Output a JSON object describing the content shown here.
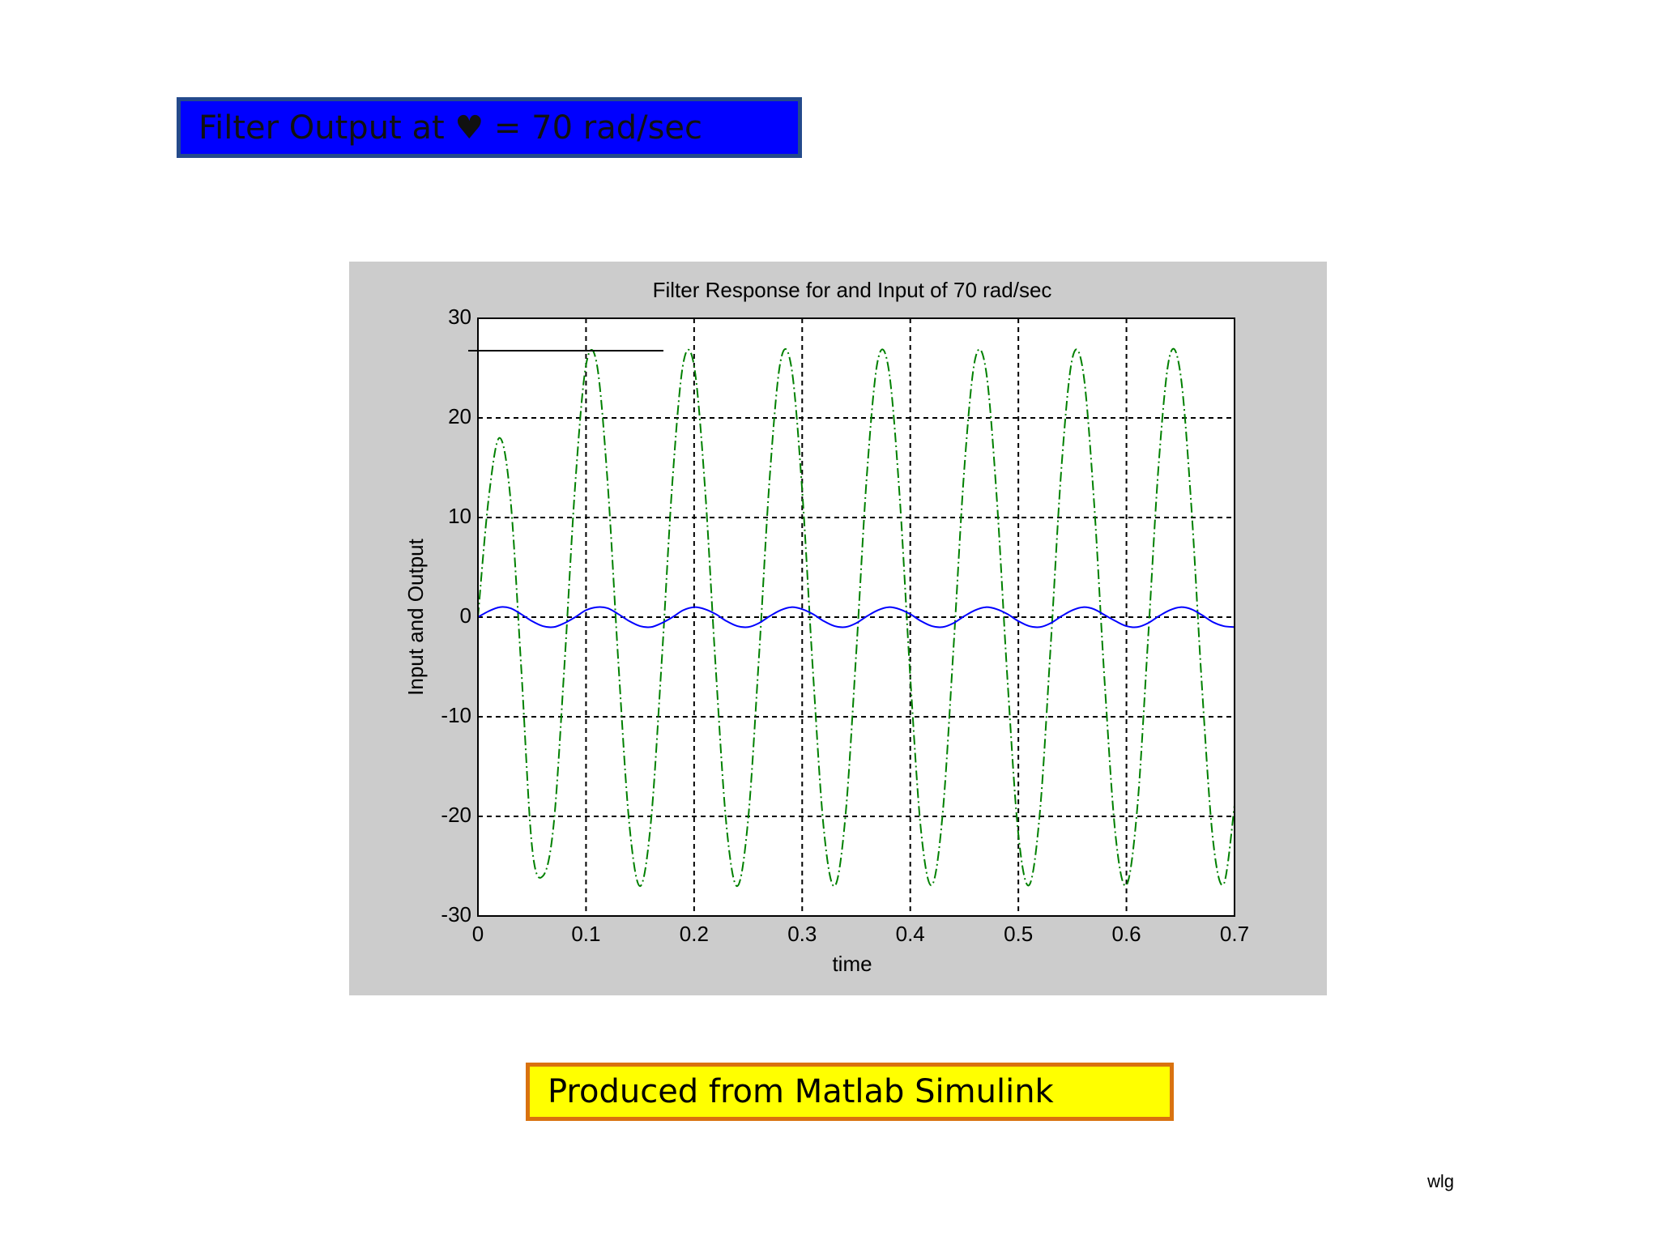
{
  "header_box": {
    "text": "Filter Output at ♥ =  70 rad/sec"
  },
  "footer_box": {
    "text": "Produced from Matlab Simulink"
  },
  "footer_note": "wlg",
  "chart_data": {
    "type": "line",
    "title": "Filter Response for and Input of 70 rad/sec",
    "x_label": "time",
    "y_label": "Input and Output",
    "x": [
      0,
      0.01,
      0.02,
      0.03,
      0.04,
      0.05,
      0.06,
      0.07,
      0.08,
      0.09,
      0.1,
      0.11,
      0.12,
      0.13,
      0.14,
      0.15,
      0.16,
      0.17,
      0.18,
      0.19,
      0.2,
      0.21,
      0.22,
      0.23,
      0.24,
      0.25,
      0.26,
      0.27,
      0.28,
      0.29,
      0.3,
      0.31,
      0.32,
      0.33,
      0.34,
      0.35,
      0.36,
      0.37,
      0.38,
      0.39,
      0.4,
      0.41,
      0.42,
      0.43,
      0.44,
      0.45,
      0.46,
      0.47,
      0.48,
      0.49,
      0.5,
      0.51,
      0.52,
      0.53,
      0.54,
      0.55,
      0.56,
      0.57,
      0.58,
      0.59,
      0.6,
      0.61,
      0.62,
      0.63,
      0.64,
      0.65,
      0.66,
      0.67,
      0.68,
      0.69,
      0.7
    ],
    "series": [
      {
        "color": "#008000",
        "dash": "12 4 2 4",
        "values": [
          0,
          12,
          18,
          12,
          -5,
          -23,
          -26,
          -20.9,
          -4.9,
          13.3,
          25.3,
          25.4,
          13.5,
          -4.7,
          -20.7,
          -27,
          -20.6,
          -4.5,
          13.7,
          25.5,
          25.2,
          13.1,
          -5.1,
          -21,
          -27,
          -20.3,
          -4,
          14.1,
          25.7,
          25.1,
          12.7,
          -5.5,
          -21.3,
          -27,
          -20,
          -3.6,
          14.5,
          25.8,
          24.9,
          12.4,
          -6,
          -21.5,
          -26.9,
          -19.7,
          -3.1,
          14.9,
          25.9,
          24.8,
          12,
          -6.4,
          -21.8,
          -26.9,
          -19.5,
          -2.7,
          15.2,
          26,
          24.6,
          11.6,
          -6.8,
          -22,
          -26.9,
          -19.2,
          -2.2,
          15.6,
          26.2,
          24.4,
          11.2,
          -7.2,
          -22.3,
          -26.8,
          -18.9
        ]
      },
      {
        "color": "#0000ff",
        "values": [
          0,
          0.6,
          1,
          0.9,
          0.3,
          -0.4,
          -0.9,
          -1,
          -0.6,
          0,
          0.7,
          1,
          0.9,
          0.3,
          -0.4,
          -0.9,
          -1,
          -0.6,
          0,
          0.7,
          1,
          0.8,
          0.3,
          -0.4,
          -0.9,
          -1,
          -0.6,
          0.1,
          0.7,
          1,
          0.8,
          0.3,
          -0.4,
          -0.9,
          -1,
          -0.6,
          0.1,
          0.7,
          1,
          0.8,
          0.3,
          -0.4,
          -0.9,
          -1,
          -0.6,
          0.1,
          0.7,
          1,
          0.8,
          0.3,
          -0.4,
          -0.9,
          -1,
          -0.6,
          0.1,
          0.7,
          1,
          0.8,
          0.2,
          -0.4,
          -0.9,
          -1,
          -0.6,
          0.1,
          0.7,
          1,
          0.8,
          0.2,
          -0.5,
          -0.9,
          -1
        ]
      }
    ],
    "xlim": [
      0,
      0.7
    ],
    "xticks": [
      0,
      0.1,
      0.2,
      0.3,
      0.4,
      0.5,
      0.6,
      0.7
    ],
    "ylim": [
      -30,
      30
    ],
    "yticks": [
      -30,
      -20,
      -10,
      0,
      10,
      20,
      30
    ],
    "grid": true
  }
}
